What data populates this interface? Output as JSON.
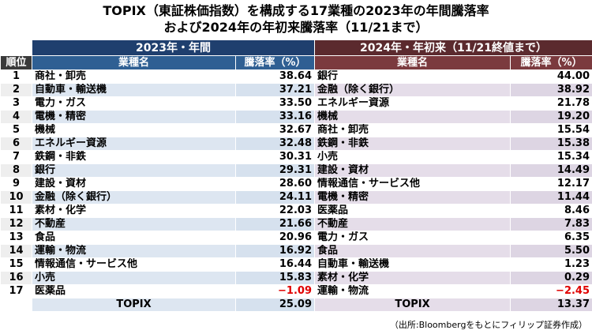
{
  "title_line1": "TOPIX（東証株価指数）を構成する17業種の2023年の年間騰落率",
  "title_line2": "および2024年の年初来騰落率（11/21まで）",
  "header": {
    "rank": "順位",
    "period_2023": "2023年・年間",
    "period_2024": "2024年・年初来（11/21終値まで）",
    "sector_label": "業種名",
    "change_label": "騰落率（%）"
  },
  "rows": [
    {
      "rank": "1",
      "s2023": "商社・卸売",
      "v2023": "38.64",
      "s2024": "銀行",
      "v2024": "44.00"
    },
    {
      "rank": "2",
      "s2023": "自動車・輸送機",
      "v2023": "37.21",
      "s2024": "金融（除く銀行）",
      "v2024": "38.92"
    },
    {
      "rank": "3",
      "s2023": "電力・ガス",
      "v2023": "33.50",
      "s2024": "エネルギー資源",
      "v2024": "21.78"
    },
    {
      "rank": "4",
      "s2023": "電機・精密",
      "v2023": "33.16",
      "s2024": "機械",
      "v2024": "19.20"
    },
    {
      "rank": "5",
      "s2023": "機械",
      "v2023": "32.67",
      "s2024": "商社・卸売",
      "v2024": "15.54"
    },
    {
      "rank": "6",
      "s2023": "エネルギー資源",
      "v2023": "32.48",
      "s2024": "鉄鋼・非鉄",
      "v2024": "15.38"
    },
    {
      "rank": "7",
      "s2023": "鉄鋼・非鉄",
      "v2023": "30.31",
      "s2024": "小売",
      "v2024": "15.34"
    },
    {
      "rank": "8",
      "s2023": "銀行",
      "v2023": "29.31",
      "s2024": "建設・資材",
      "v2024": "14.49"
    },
    {
      "rank": "9",
      "s2023": "建設・資材",
      "v2023": "28.60",
      "s2024": "情報通信・サービス他",
      "v2024": "12.17"
    },
    {
      "rank": "10",
      "s2023": "金融（除く銀行）",
      "v2023": "24.11",
      "s2024": "電機・精密",
      "v2024": "11.44"
    },
    {
      "rank": "11",
      "s2023": "素材・化学",
      "v2023": "22.03",
      "s2024": "医薬品",
      "v2024": "8.46"
    },
    {
      "rank": "12",
      "s2023": "不動産",
      "v2023": "21.66",
      "s2024": "不動産",
      "v2024": "7.83"
    },
    {
      "rank": "13",
      "s2023": "食品",
      "v2023": "20.96",
      "s2024": "電力・ガス",
      "v2024": "6.35"
    },
    {
      "rank": "14",
      "s2023": "運輸・物流",
      "v2023": "16.92",
      "s2024": "食品",
      "v2024": "5.50"
    },
    {
      "rank": "15",
      "s2023": "情報通信・サービス他",
      "v2023": "16.44",
      "s2024": "自動車・輸送機",
      "v2024": "1.23"
    },
    {
      "rank": "16",
      "s2023": "小売",
      "v2023": "15.83",
      "s2024": "素材・化学",
      "v2024": "0.29"
    },
    {
      "rank": "17",
      "s2023": "医薬品",
      "v2023": "−1.09",
      "s2024": "運輸・物流",
      "v2024": "−2.45"
    }
  ],
  "footer": {
    "topix_label_2023": "TOPIX",
    "topix_2023": "25.09",
    "topix_label_2024": "TOPIX",
    "topix_2024": "13.37"
  },
  "source": "（出所:Bloombergをもとにフィリップ証券作成）",
  "colors": {
    "header_2023": "#1f3f6e",
    "header_2024": "#5b2a2e",
    "negative": "#e00000"
  }
}
